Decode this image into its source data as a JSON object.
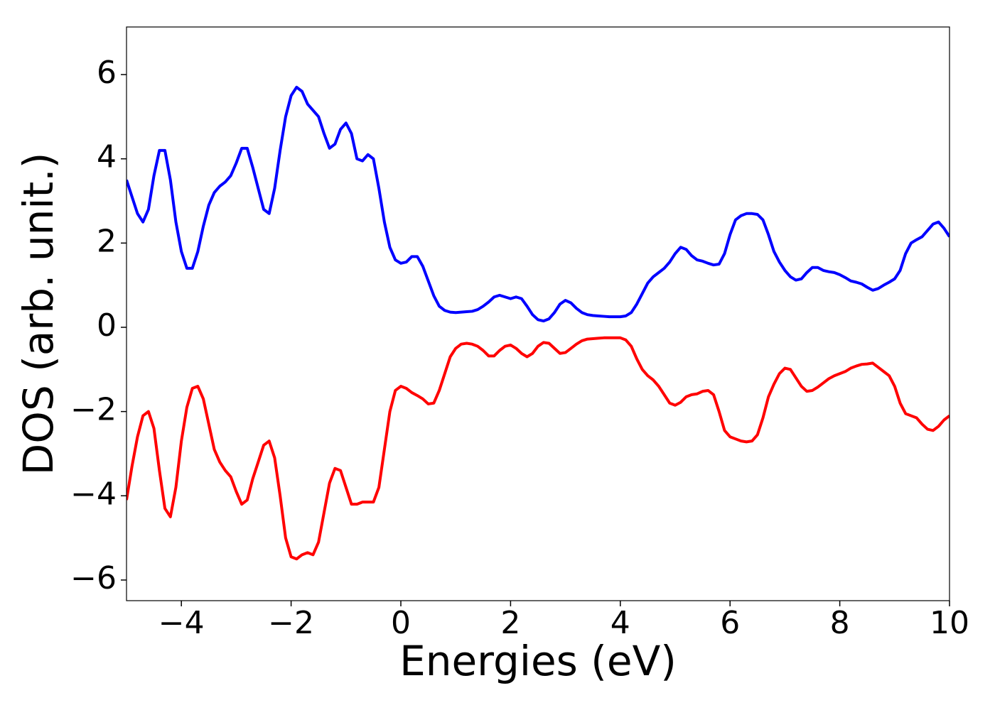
{
  "chart_data": {
    "type": "line",
    "x_label": "Energies (eV)",
    "y_label": "DOS (arb. unit.)",
    "xlim": [
      -5,
      10
    ],
    "ylim": [
      -6.49,
      7.13
    ],
    "xticks": [
      {
        "value": -4,
        "label": "−4"
      },
      {
        "value": -2,
        "label": "−2"
      },
      0,
      2,
      4,
      6,
      8,
      10
    ],
    "yticks": [
      {
        "value": -6,
        "label": "−6"
      },
      {
        "value": -4,
        "label": "−4"
      },
      {
        "value": -2,
        "label": "−2"
      },
      0,
      2,
      4,
      6
    ],
    "grid": false,
    "x": [
      -5.0,
      -4.9,
      -4.8,
      -4.7,
      -4.6,
      -4.5,
      -4.4,
      -4.3,
      -4.2,
      -4.1,
      -4.0,
      -3.9,
      -3.8,
      -3.7,
      -3.6,
      -3.5,
      -3.4,
      -3.3,
      -3.2,
      -3.1,
      -3.0,
      -2.9,
      -2.8,
      -2.7,
      -2.6,
      -2.5,
      -2.4,
      -2.3,
      -2.2,
      -2.1,
      -2.0,
      -1.9,
      -1.8,
      -1.7,
      -1.6,
      -1.5,
      -1.4,
      -1.3,
      -1.2,
      -1.1,
      -1.0,
      -0.9,
      -0.8,
      -0.7,
      -0.6,
      -0.5,
      -0.4,
      -0.3,
      -0.2,
      -0.1,
      0.0,
      0.1,
      0.2,
      0.3,
      0.4,
      0.5,
      0.6,
      0.7,
      0.8,
      0.9,
      1.0,
      1.1,
      1.2,
      1.3,
      1.4,
      1.5,
      1.6,
      1.7,
      1.8,
      1.9,
      2.0,
      2.1,
      2.2,
      2.3,
      2.4,
      2.5,
      2.6,
      2.7,
      2.8,
      2.9,
      3.0,
      3.1,
      3.2,
      3.3,
      3.4,
      3.5,
      3.6,
      3.7,
      3.8,
      3.9,
      4.0,
      4.1,
      4.2,
      4.3,
      4.4,
      4.5,
      4.6,
      4.7,
      4.8,
      4.9,
      5.0,
      5.1,
      5.2,
      5.3,
      5.4,
      5.5,
      5.6,
      5.7,
      5.8,
      5.9,
      6.0,
      6.1,
      6.2,
      6.3,
      6.4,
      6.5,
      6.6,
      6.7,
      6.8,
      6.9,
      7.0,
      7.1,
      7.2,
      7.3,
      7.4,
      7.5,
      7.6,
      7.7,
      7.8,
      7.9,
      8.0,
      8.1,
      8.2,
      8.3,
      8.4,
      8.5,
      8.6,
      8.7,
      8.8,
      8.9,
      9.0,
      9.1,
      9.2,
      9.3,
      9.4,
      9.5,
      9.6,
      9.7,
      9.8,
      9.9,
      10.0
    ],
    "series": [
      {
        "color": "#0000ff",
        "values": [
          3.5,
          3.1,
          2.7,
          2.5,
          2.8,
          3.6,
          4.2,
          4.2,
          3.5,
          2.5,
          1.8,
          1.4,
          1.4,
          1.8,
          2.4,
          2.9,
          3.2,
          3.35,
          3.45,
          3.6,
          3.9,
          4.25,
          4.25,
          3.8,
          3.3,
          2.8,
          2.7,
          3.3,
          4.2,
          5.0,
          5.5,
          5.7,
          5.6,
          5.3,
          5.15,
          5.0,
          4.6,
          4.25,
          4.35,
          4.7,
          4.85,
          4.6,
          4.0,
          3.95,
          4.1,
          4.0,
          3.3,
          2.5,
          1.9,
          1.6,
          1.52,
          1.55,
          1.68,
          1.68,
          1.45,
          1.1,
          0.75,
          0.5,
          0.4,
          0.36,
          0.35,
          0.36,
          0.37,
          0.38,
          0.42,
          0.5,
          0.6,
          0.72,
          0.76,
          0.72,
          0.68,
          0.72,
          0.68,
          0.5,
          0.3,
          0.18,
          0.15,
          0.2,
          0.35,
          0.55,
          0.64,
          0.58,
          0.45,
          0.35,
          0.3,
          0.28,
          0.27,
          0.26,
          0.25,
          0.25,
          0.25,
          0.27,
          0.35,
          0.55,
          0.8,
          1.05,
          1.2,
          1.3,
          1.4,
          1.55,
          1.75,
          1.9,
          1.85,
          1.7,
          1.6,
          1.57,
          1.52,
          1.48,
          1.5,
          1.75,
          2.2,
          2.55,
          2.65,
          2.7,
          2.7,
          2.68,
          2.55,
          2.2,
          1.8,
          1.55,
          1.35,
          1.2,
          1.12,
          1.15,
          1.3,
          1.42,
          1.42,
          1.35,
          1.32,
          1.3,
          1.25,
          1.18,
          1.1,
          1.07,
          1.03,
          0.95,
          0.88,
          0.92,
          1.0,
          1.07,
          1.15,
          1.35,
          1.75,
          2.0,
          2.08,
          2.15,
          2.3,
          2.45,
          2.5,
          2.35,
          2.15
        ]
      },
      {
        "color": "#ff0000",
        "values": [
          -4.1,
          -3.3,
          -2.6,
          -2.1,
          -2.0,
          -2.4,
          -3.4,
          -4.3,
          -4.5,
          -3.8,
          -2.7,
          -1.9,
          -1.45,
          -1.4,
          -1.7,
          -2.3,
          -2.9,
          -3.2,
          -3.4,
          -3.55,
          -3.9,
          -4.2,
          -4.1,
          -3.6,
          -3.2,
          -2.8,
          -2.7,
          -3.1,
          -4.0,
          -5.0,
          -5.45,
          -5.5,
          -5.4,
          -5.35,
          -5.4,
          -5.1,
          -4.4,
          -3.7,
          -3.35,
          -3.4,
          -3.8,
          -4.2,
          -4.2,
          -4.15,
          -4.15,
          -4.15,
          -3.8,
          -2.9,
          -2.0,
          -1.5,
          -1.4,
          -1.45,
          -1.55,
          -1.62,
          -1.7,
          -1.82,
          -1.8,
          -1.5,
          -1.1,
          -0.7,
          -0.5,
          -0.4,
          -0.38,
          -0.4,
          -0.45,
          -0.55,
          -0.68,
          -0.68,
          -0.55,
          -0.45,
          -0.42,
          -0.5,
          -0.62,
          -0.7,
          -0.62,
          -0.45,
          -0.36,
          -0.38,
          -0.5,
          -0.62,
          -0.6,
          -0.5,
          -0.4,
          -0.32,
          -0.28,
          -0.27,
          -0.26,
          -0.25,
          -0.25,
          -0.25,
          -0.25,
          -0.3,
          -0.45,
          -0.75,
          -1.0,
          -1.15,
          -1.25,
          -1.4,
          -1.6,
          -1.8,
          -1.85,
          -1.78,
          -1.65,
          -1.6,
          -1.58,
          -1.52,
          -1.5,
          -1.6,
          -2.0,
          -2.45,
          -2.6,
          -2.65,
          -2.7,
          -2.72,
          -2.7,
          -2.55,
          -2.15,
          -1.65,
          -1.35,
          -1.1,
          -0.97,
          -1.0,
          -1.2,
          -1.4,
          -1.52,
          -1.5,
          -1.42,
          -1.32,
          -1.22,
          -1.15,
          -1.1,
          -1.05,
          -0.97,
          -0.92,
          -0.88,
          -0.87,
          -0.85,
          -0.95,
          -1.05,
          -1.15,
          -1.4,
          -1.8,
          -2.05,
          -2.1,
          -2.15,
          -2.3,
          -2.42,
          -2.45,
          -2.35,
          -2.2,
          -2.1
        ]
      }
    ]
  }
}
